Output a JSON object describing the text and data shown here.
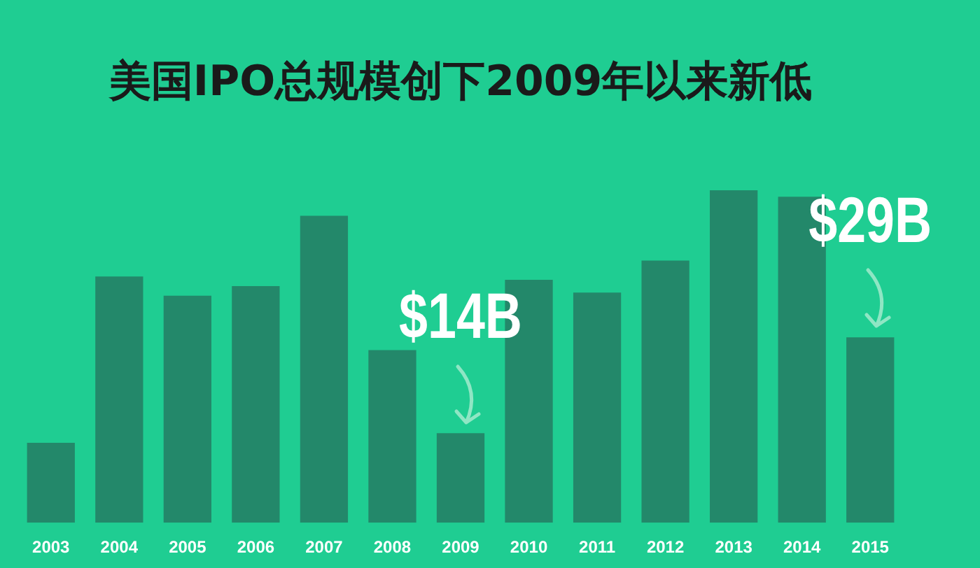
{
  "chart_data": {
    "type": "bar",
    "title": "美国IPO总规模创下2009年以来新低",
    "categories": [
      "2003",
      "2004",
      "2005",
      "2006",
      "2007",
      "2008",
      "2009",
      "2010",
      "2011",
      "2012",
      "2013",
      "2014",
      "2015"
    ],
    "values": [
      12.5,
      38.5,
      35.5,
      37,
      48,
      27,
      14,
      38,
      36,
      41,
      52,
      51,
      29
    ],
    "value_labels": [
      null,
      null,
      null,
      null,
      null,
      null,
      "$14B",
      null,
      null,
      null,
      null,
      null,
      "$29B"
    ],
    "color": "#23886a"
  }
}
